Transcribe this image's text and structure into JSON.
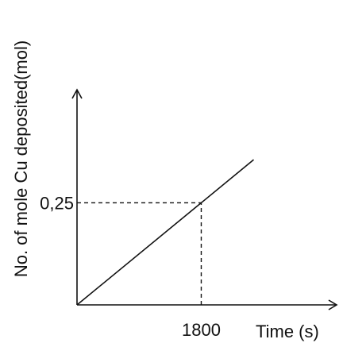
{
  "chart_data": {
    "type": "line",
    "title": "",
    "xlabel": "Time (s)",
    "ylabel": "No. of mole  Cu deposited(mol)",
    "x_ticks": [
      {
        "value": 1800,
        "label": "1800"
      }
    ],
    "y_ticks": [
      {
        "value": 0.25,
        "label": "0,25"
      }
    ],
    "series": [
      {
        "x": [
          0,
          1800,
          2560
        ],
        "y": [
          0,
          0.25,
          0.3556
        ]
      }
    ],
    "reference_lines": [
      {
        "from": [
          0,
          0.25
        ],
        "to": [
          1800,
          0.25
        ],
        "style": "dashed"
      },
      {
        "from": [
          1800,
          0
        ],
        "to": [
          1800,
          0.25
        ],
        "style": "dashed"
      }
    ],
    "xlim": [
      0,
      3750
    ],
    "ylim": [
      0,
      0.525
    ],
    "grid": false,
    "colors": {
      "line": "#111111",
      "axis": "#111111"
    }
  }
}
